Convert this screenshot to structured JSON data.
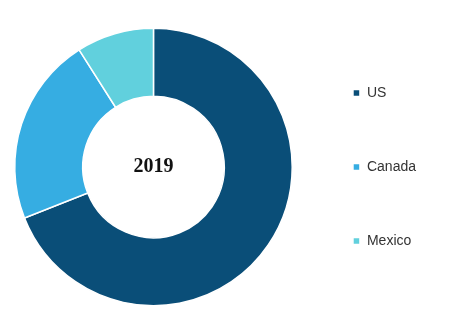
{
  "chart_data": {
    "type": "doughnut",
    "title": "2019",
    "categories": [
      "US",
      "Canada",
      "Mexico"
    ],
    "values": [
      69,
      22,
      9
    ],
    "colors": [
      "#0a4e78",
      "#36ade2",
      "#61d0dd"
    ],
    "legend": "right"
  }
}
